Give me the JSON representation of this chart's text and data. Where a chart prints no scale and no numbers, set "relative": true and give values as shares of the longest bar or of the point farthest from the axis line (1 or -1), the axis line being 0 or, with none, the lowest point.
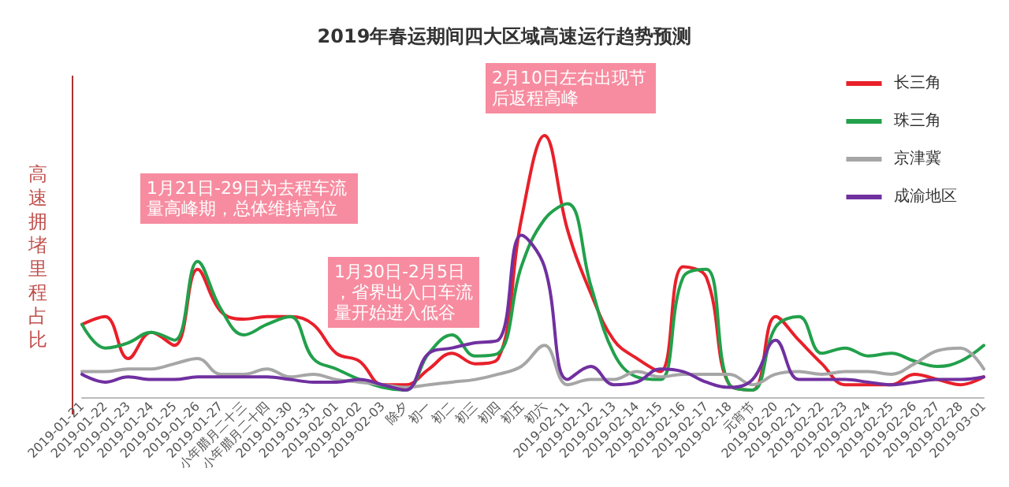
{
  "chart_data": {
    "type": "line",
    "title": "2019年春运期间四大区域高速运行趋势预测",
    "ylabel": "高速拥堵里程占比",
    "relative": true,
    "legend": "top right",
    "grid": false,
    "marker": "none",
    "line_style": "solid",
    "categories": [
      "2019-01-21",
      "2019-01-22",
      "2019-01-23",
      "2019-01-24",
      "2019-01-25",
      "2019-01-26",
      "2019-01-27",
      "小年腊月二十三",
      "小年腊月二十四",
      "2019-01-30",
      "2019-01-31",
      "2019-02-01",
      "2019-02-02",
      "2019-02-03",
      "除夕",
      "初一",
      "初二",
      "初三",
      "初四",
      "初五",
      "初六",
      "2019-02-11",
      "2019-02-12",
      "2019-02-13",
      "2019-02-14",
      "2019-02-15",
      "2019-02-16",
      "2019-02-17",
      "2019-02-18",
      "元宵节",
      "2019-02-20",
      "2019-02-21",
      "2019-02-22",
      "2019-02-23",
      "2019-02-24",
      "2019-02-25",
      "2019-02-26",
      "2019-02-27",
      "2019-02-28",
      "2019-03-01"
    ],
    "series": [
      {
        "name": "长三角",
        "color": "#e8202a",
        "values": [
          0.28,
          0.31,
          0.15,
          0.25,
          0.2,
          0.49,
          0.33,
          0.3,
          0.31,
          0.31,
          0.28,
          0.17,
          0.14,
          0.05,
          0.05,
          0.11,
          0.17,
          0.13,
          0.15,
          0.68,
          1.0,
          0.64,
          0.4,
          0.22,
          0.15,
          0.1,
          0.5,
          0.46,
          0.05,
          0.03,
          0.31,
          0.22,
          0.13,
          0.05,
          0.05,
          0.05,
          0.09,
          0.07,
          0.05,
          0.08
        ]
      },
      {
        "name": "珠三角",
        "color": "#22a04b",
        "values": [
          0.28,
          0.19,
          0.21,
          0.25,
          0.22,
          0.52,
          0.34,
          0.24,
          0.28,
          0.31,
          0.15,
          0.11,
          0.07,
          0.04,
          0.03,
          0.17,
          0.24,
          0.16,
          0.17,
          0.5,
          0.68,
          0.74,
          0.43,
          0.17,
          0.08,
          0.07,
          0.46,
          0.49,
          0.05,
          0.03,
          0.27,
          0.31,
          0.17,
          0.19,
          0.16,
          0.17,
          0.14,
          0.12,
          0.14,
          0.2
        ]
      },
      {
        "name": "京津冀",
        "color": "#a6a6a6",
        "values": [
          0.1,
          0.1,
          0.11,
          0.11,
          0.13,
          0.15,
          0.09,
          0.09,
          0.11,
          0.08,
          0.09,
          0.07,
          0.06,
          0.05,
          0.04,
          0.05,
          0.06,
          0.07,
          0.09,
          0.12,
          0.2,
          0.05,
          0.07,
          0.07,
          0.1,
          0.08,
          0.09,
          0.09,
          0.09,
          0.05,
          0.09,
          0.1,
          0.09,
          0.1,
          0.1,
          0.09,
          0.13,
          0.18,
          0.19,
          0.11
        ]
      },
      {
        "name": "成渝地区",
        "color": "#7030a0",
        "values": [
          0.09,
          0.06,
          0.08,
          0.07,
          0.07,
          0.08,
          0.08,
          0.08,
          0.08,
          0.07,
          0.06,
          0.06,
          0.07,
          0.05,
          0.03,
          0.17,
          0.19,
          0.21,
          0.22,
          0.62,
          0.5,
          0.07,
          0.12,
          0.05,
          0.06,
          0.11,
          0.1,
          0.06,
          0.04,
          0.07,
          0.22,
          0.07,
          0.07,
          0.07,
          0.06,
          0.05,
          0.06,
          0.07,
          0.07,
          0.08
        ]
      }
    ],
    "annotations": [
      "1月21日-29日为去程车流量高峰期，总体维持高位",
      "1月30日-2月5日，省界出入口车流量开始进入低谷",
      "2月10日左右出现节后返程高峰"
    ]
  }
}
